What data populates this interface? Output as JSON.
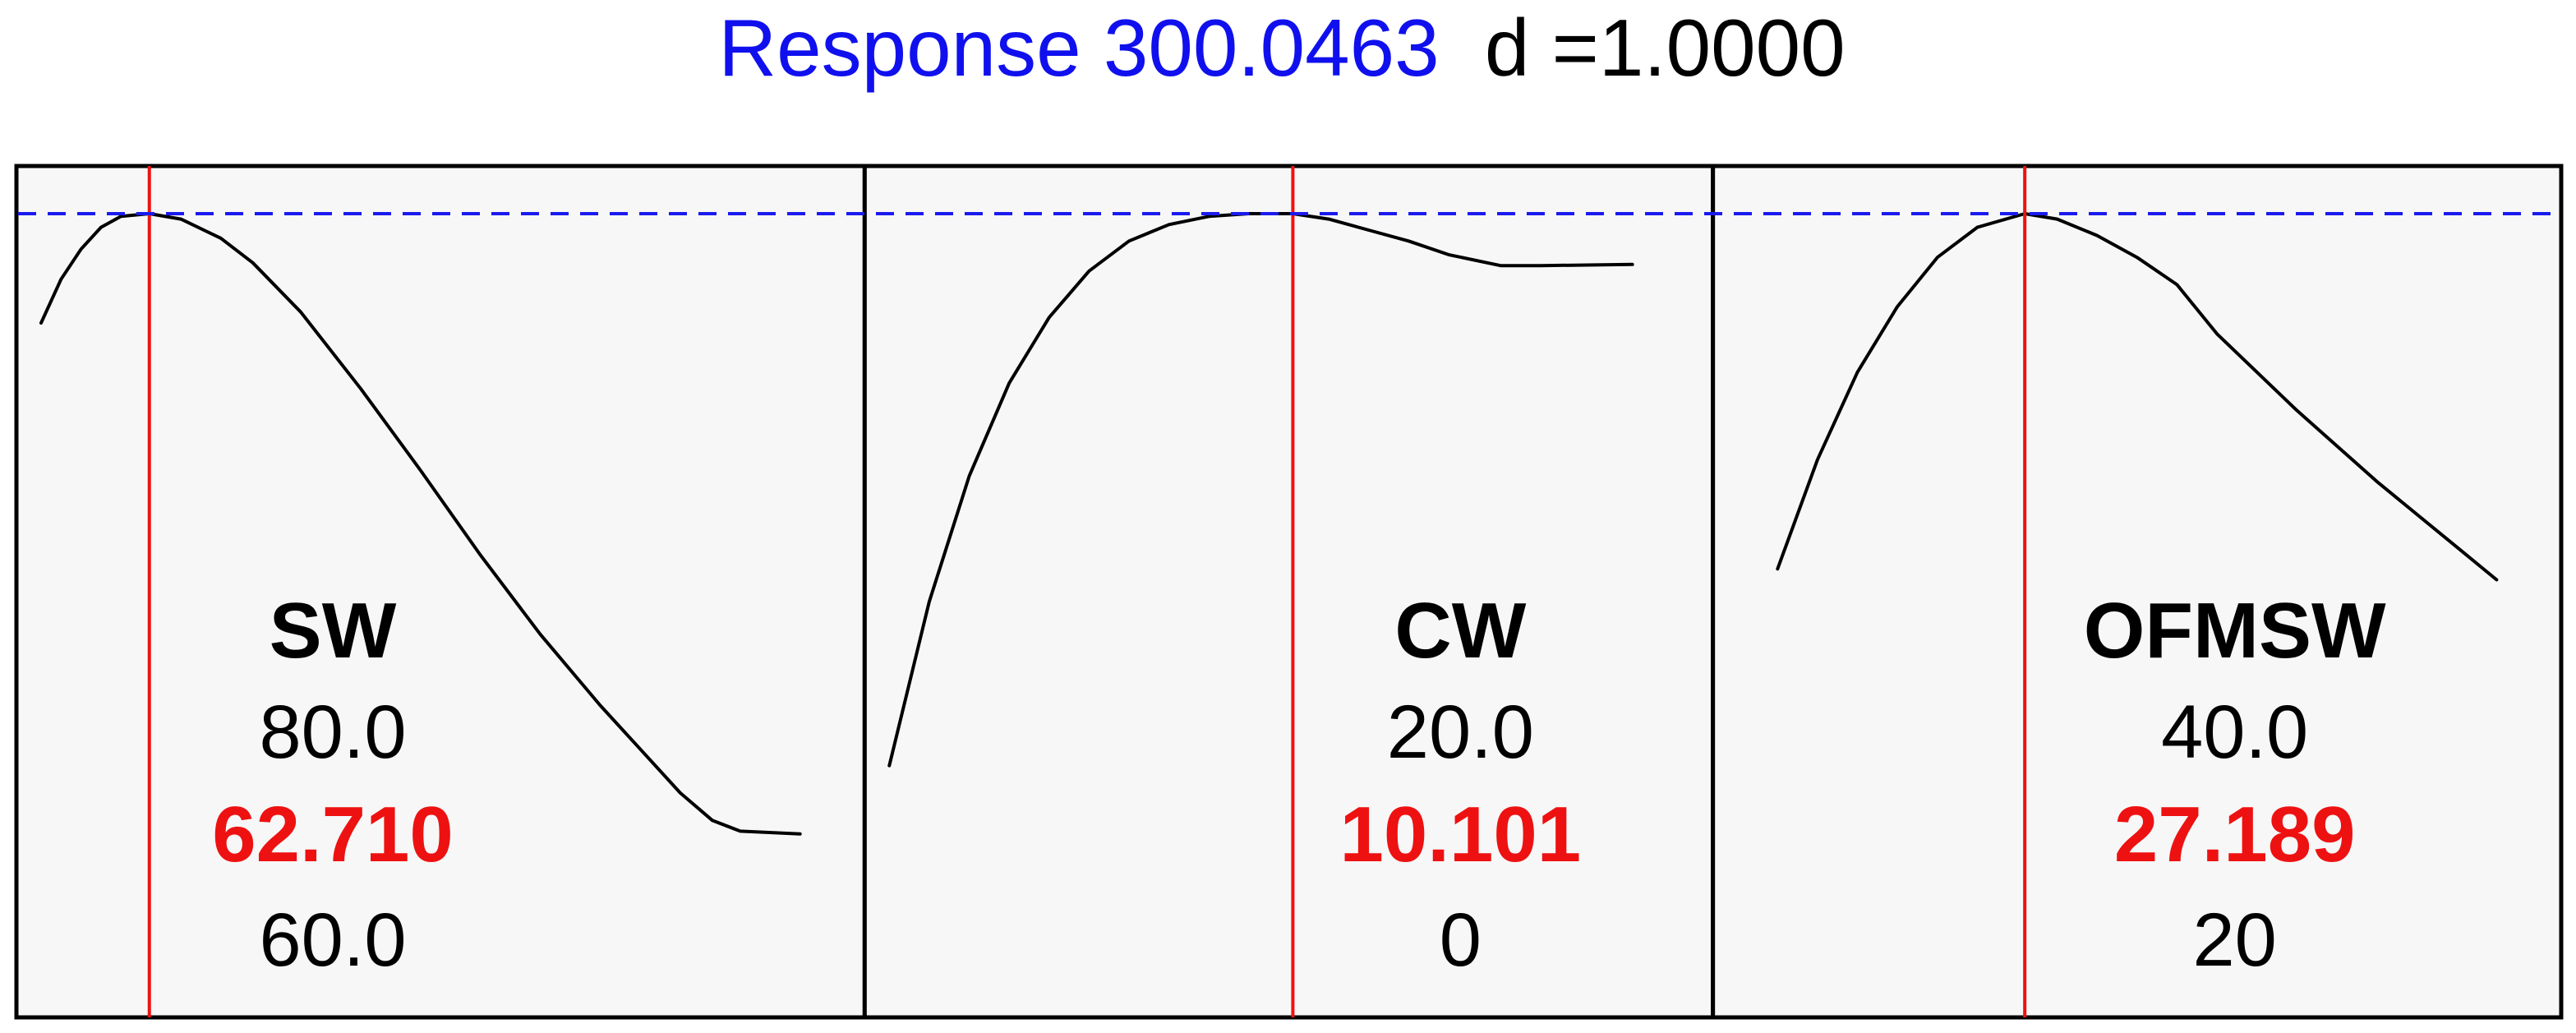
{
  "chart_data": {
    "type": "line",
    "title": {
      "response_label": "Response 300.0463",
      "desirability_label": "d =1.0000"
    },
    "colors": {
      "title_response": "#1010ee",
      "optimum_line": "#ee1111",
      "reference_line": "#1a1aee",
      "current_value": "#ee1111",
      "curve": "#000000",
      "panel_background": "#f7f7f7",
      "panel_border": "#000000"
    },
    "grid": false,
    "factors": [
      {
        "name": "SW",
        "high": "80.0",
        "current": "62.710",
        "low": "60.0",
        "range": [
          60.0,
          80.0
        ],
        "optimum": 62.71,
        "curve": [
          [
            60.0,
            0.8
          ],
          [
            60.5,
            0.88
          ],
          [
            61.0,
            0.935
          ],
          [
            61.5,
            0.975
          ],
          [
            62.0,
            0.995
          ],
          [
            62.71,
            1.0
          ],
          [
            63.5,
            0.99
          ],
          [
            64.5,
            0.955
          ],
          [
            65.3,
            0.91
          ],
          [
            66.5,
            0.82
          ],
          [
            68.0,
            0.68
          ],
          [
            69.5,
            0.53
          ],
          [
            71.0,
            0.375
          ],
          [
            72.5,
            0.23
          ],
          [
            74.0,
            0.1
          ],
          [
            75.0,
            0.02
          ],
          [
            76.0,
            -0.06
          ],
          [
            76.8,
            -0.11
          ],
          [
            77.5,
            -0.13
          ],
          [
            79.0,
            -0.135
          ]
        ]
      },
      {
        "name": "CW",
        "high": "20.0",
        "current": "10.101",
        "low": "0",
        "range": [
          0,
          20
        ],
        "optimum": 10.101,
        "curve": [
          [
            0.0,
            -0.01
          ],
          [
            1.0,
            0.29
          ],
          [
            2.0,
            0.52
          ],
          [
            3.0,
            0.69
          ],
          [
            4.0,
            0.81
          ],
          [
            5.0,
            0.895
          ],
          [
            6.0,
            0.95
          ],
          [
            7.0,
            0.98
          ],
          [
            8.0,
            0.995
          ],
          [
            9.0,
            1.0
          ],
          [
            10.101,
            1.0
          ],
          [
            11.0,
            0.99
          ],
          [
            12.0,
            0.97
          ],
          [
            13.0,
            0.95
          ],
          [
            14.0,
            0.925
          ],
          [
            15.3,
            0.905
          ],
          [
            16.3,
            0.905
          ],
          [
            18.6,
            0.907
          ]
        ]
      },
      {
        "name": "OFMSW",
        "high": "40.0",
        "current": "27.189",
        "low": "20",
        "range": [
          20,
          40
        ],
        "optimum": 27.189,
        "curve": [
          [
            21.0,
            0.35
          ],
          [
            22.0,
            0.55
          ],
          [
            23.0,
            0.71
          ],
          [
            24.0,
            0.83
          ],
          [
            25.0,
            0.92
          ],
          [
            26.0,
            0.975
          ],
          [
            27.189,
            1.0
          ],
          [
            28.0,
            0.99
          ],
          [
            29.0,
            0.96
          ],
          [
            30.0,
            0.92
          ],
          [
            31.0,
            0.87
          ],
          [
            32.0,
            0.78
          ],
          [
            34.0,
            0.64
          ],
          [
            36.0,
            0.51
          ],
          [
            38.0,
            0.39
          ],
          [
            39.0,
            0.33
          ]
        ]
      }
    ]
  }
}
